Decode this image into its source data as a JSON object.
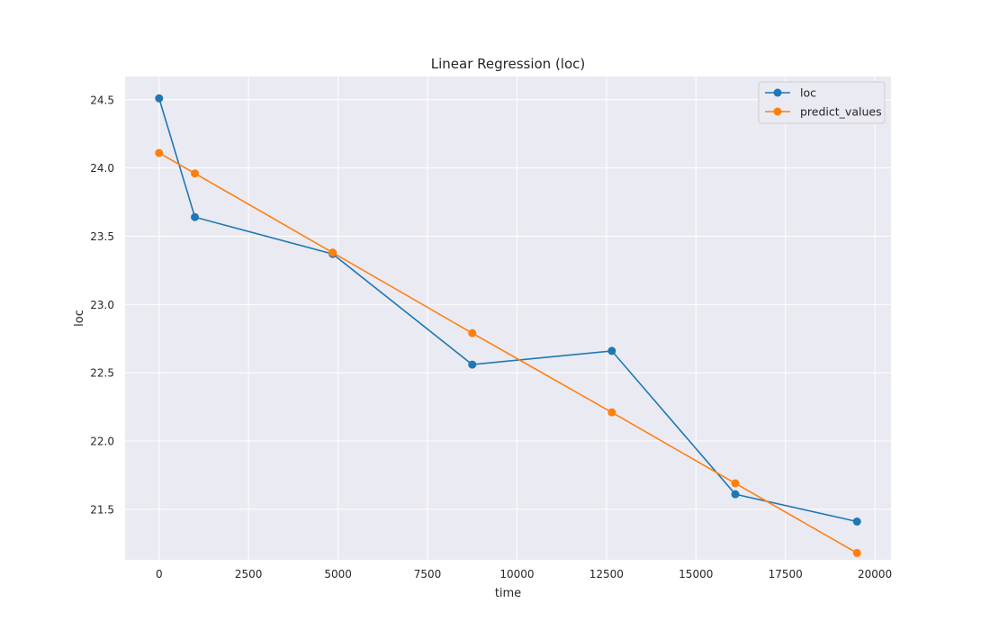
{
  "chart_data": {
    "type": "line",
    "title": "Linear Regression (loc)",
    "xlabel": "time",
    "ylabel": "loc",
    "xlim": [
      -950,
      20450
    ],
    "ylim": [
      21.13,
      24.67
    ],
    "xticks": [
      0,
      2500,
      5000,
      7500,
      10000,
      12500,
      15000,
      17500,
      20000
    ],
    "yticks": [
      21.5,
      22.0,
      22.5,
      23.0,
      23.5,
      24.0,
      24.5
    ],
    "xtick_labels": [
      "0",
      "2500",
      "5000",
      "7500",
      "10000",
      "12500",
      "15000",
      "17500",
      "20000"
    ],
    "ytick_labels": [
      "21.5",
      "22.0",
      "22.5",
      "23.0",
      "23.5",
      "24.0",
      "24.5"
    ],
    "grid": true,
    "legend_position": "top-right",
    "x": [
      0,
      1000,
      4850,
      8750,
      12650,
      16100,
      19500
    ],
    "series": [
      {
        "name": "loc",
        "color": "#1f77b4",
        "marker": "circle",
        "values": [
          24.51,
          23.64,
          23.37,
          22.56,
          22.66,
          21.61,
          21.41
        ]
      },
      {
        "name": "predict_values",
        "color": "#ff7f0e",
        "marker": "circle",
        "values": [
          24.11,
          23.96,
          23.38,
          22.79,
          22.21,
          21.69,
          21.18
        ]
      }
    ]
  }
}
